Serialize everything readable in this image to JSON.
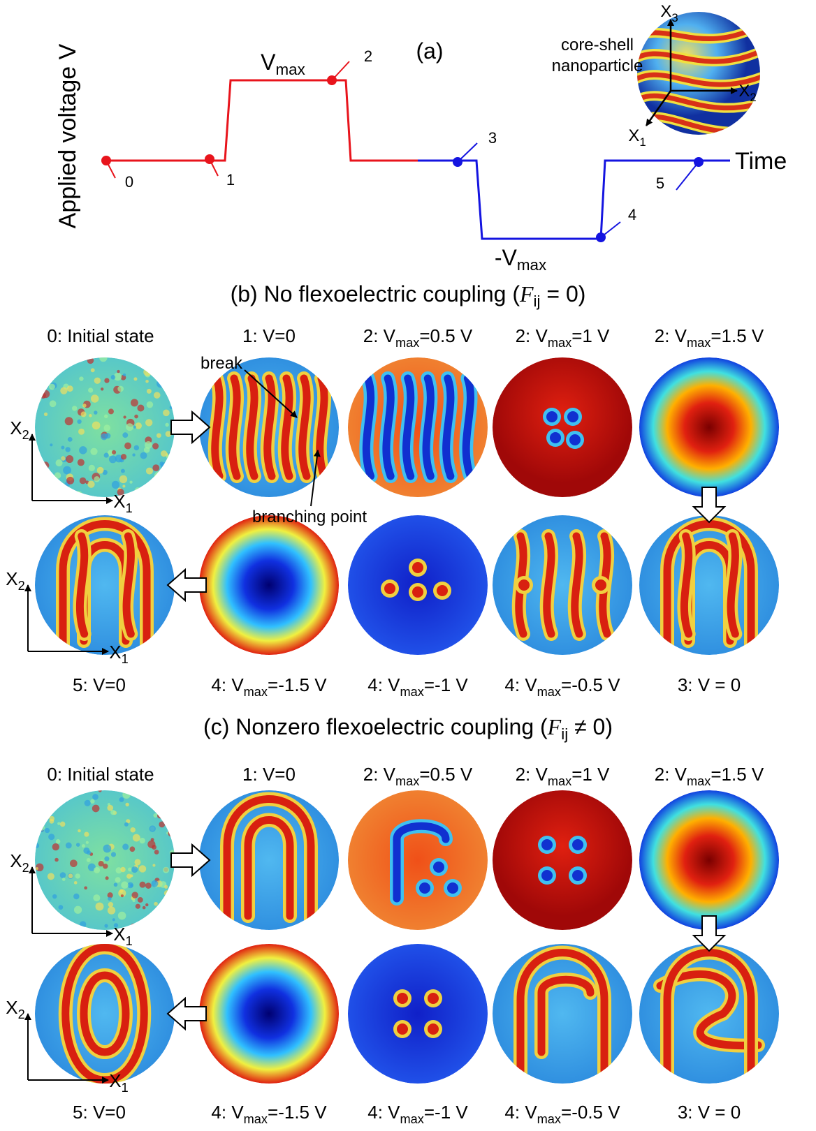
{
  "panel_a": {
    "label": "(a)",
    "y_axis": "Applied voltage V",
    "x_axis": "Time",
    "vmax": {
      "pre": "V",
      "sub": "max"
    },
    "neg_vmax": {
      "pre": "-V",
      "sub": "max"
    },
    "points": [
      "0",
      "1",
      "2",
      "3",
      "4",
      "5"
    ],
    "inset": {
      "caption": [
        "core-shell",
        "nanoparticle"
      ],
      "axes": [
        {
          "pre": "X",
          "sub": "1"
        },
        {
          "pre": "X",
          "sub": "2"
        },
        {
          "pre": "X",
          "sub": "3"
        }
      ]
    }
  },
  "panel_b": {
    "title": {
      "pre": "(b) No flexoelectric coupling (",
      "math": "F",
      "sub": "ij",
      "post": " = 0)"
    },
    "top_labels": [
      {
        "pre": "0: Initial state"
      },
      {
        "pre": "1: V=0"
      },
      {
        "pre": "2: V",
        "sub": "max",
        "post": "=0.5 V"
      },
      {
        "pre": "2: V",
        "sub": "max",
        "post": "=1 V"
      },
      {
        "pre": "2: V",
        "sub": "max",
        "post": "=1.5 V"
      }
    ],
    "bottom_labels": [
      {
        "pre": "5: V=0"
      },
      {
        "pre": "4: V",
        "sub": "max",
        "post": "=-1.5 V"
      },
      {
        "pre": "4: V",
        "sub": "max",
        "post": "=-1 V"
      },
      {
        "pre": "4: V",
        "sub": "max",
        "post": "=-0.5 V"
      },
      {
        "pre": "3: V = 0"
      }
    ],
    "annotations": [
      "break",
      "branching point"
    ],
    "axes": [
      {
        "pre": "X",
        "sub": "1"
      },
      {
        "pre": "X",
        "sub": "2"
      }
    ]
  },
  "panel_c": {
    "title": {
      "pre": "(c) Nonzero flexoelectric coupling (",
      "math": "F",
      "sub": "ij",
      "post": " ≠ 0)"
    },
    "top_labels": [
      {
        "pre": "0: Initial state"
      },
      {
        "pre": "1: V=0"
      },
      {
        "pre": "2: V",
        "sub": "max",
        "post": "=0.5 V"
      },
      {
        "pre": "2: V",
        "sub": "max",
        "post": "=1 V"
      },
      {
        "pre": "2: V",
        "sub": "max",
        "post": "=1.5 V"
      }
    ],
    "bottom_labels": [
      {
        "pre": "5: V=0"
      },
      {
        "pre": "4: V",
        "sub": "max",
        "post": "=-1.5 V"
      },
      {
        "pre": "4: V",
        "sub": "max",
        "post": "=-1 V"
      },
      {
        "pre": "4: V",
        "sub": "max",
        "post": "=-0.5 V"
      },
      {
        "pre": "3: V = 0"
      }
    ],
    "axes": [
      {
        "pre": "X",
        "sub": "1"
      },
      {
        "pre": "X",
        "sub": "2"
      }
    ]
  }
}
